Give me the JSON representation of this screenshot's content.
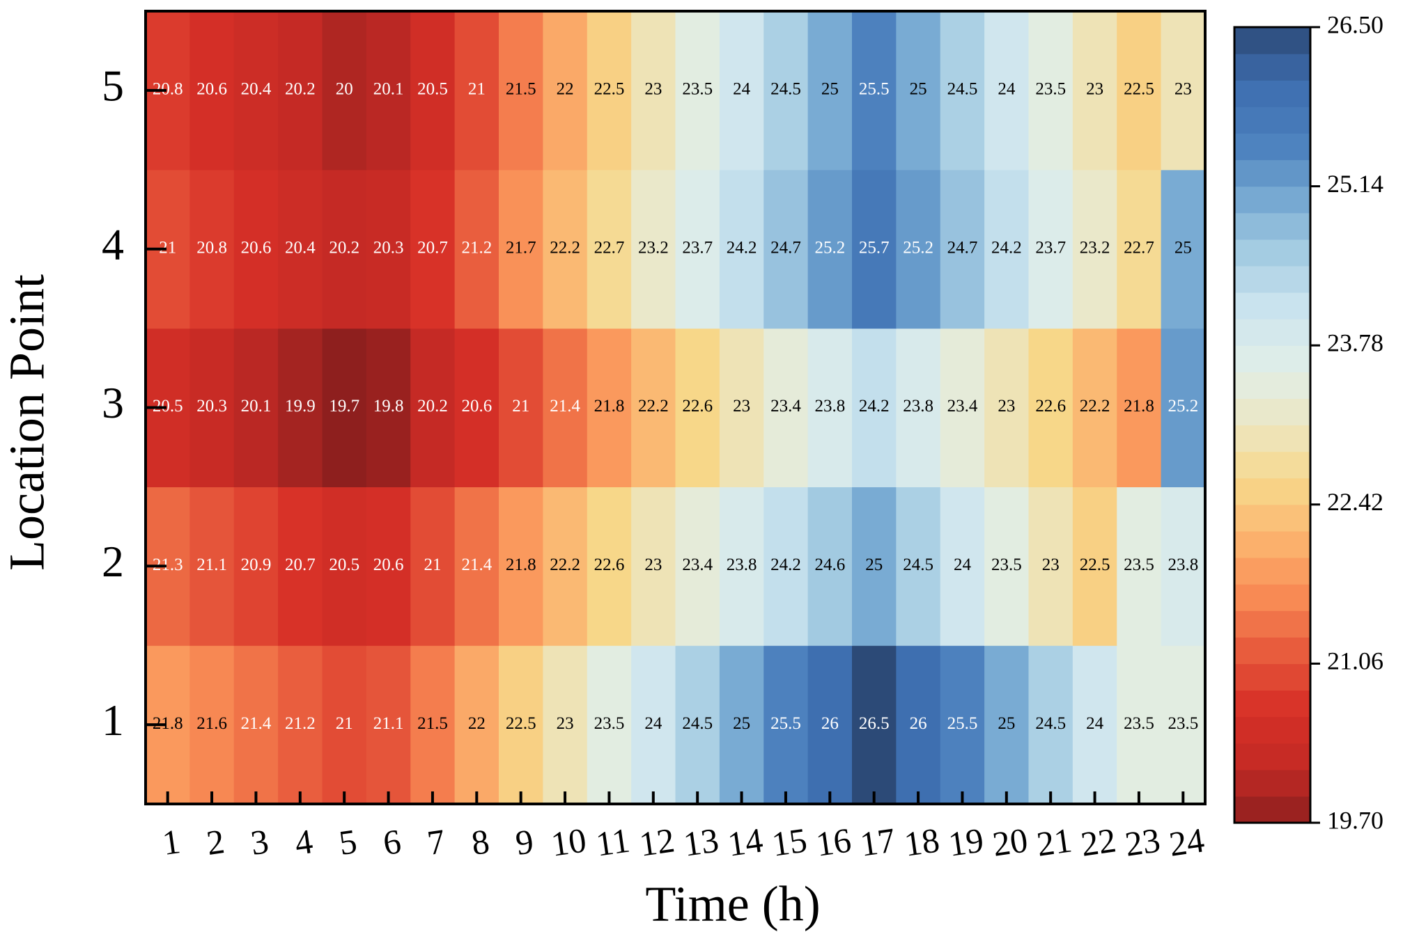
{
  "chart_data": {
    "type": "heatmap",
    "x_label": "Time (h)",
    "y_label": "Location Point",
    "x": [
      1,
      2,
      3,
      4,
      5,
      6,
      7,
      8,
      9,
      10,
      11,
      12,
      13,
      14,
      15,
      16,
      17,
      18,
      19,
      20,
      21,
      22,
      23,
      24
    ],
    "y": [
      1,
      2,
      3,
      4,
      5
    ],
    "values": [
      [
        21.8,
        21.6,
        21.4,
        21.2,
        21,
        21.1,
        21.5,
        22,
        22.5,
        23,
        23.5,
        24,
        24.5,
        25,
        25.5,
        26,
        26.5,
        26,
        25.5,
        25,
        24.5,
        24,
        23.5,
        23.5
      ],
      [
        21.3,
        21.1,
        20.9,
        20.7,
        20.5,
        20.6,
        21,
        21.4,
        21.8,
        22.2,
        22.6,
        23,
        23.4,
        23.8,
        24.2,
        24.6,
        25,
        24.5,
        24,
        23.5,
        23,
        22.5,
        23.5,
        23.8
      ],
      [
        20.5,
        20.3,
        20.1,
        19.9,
        19.7,
        19.8,
        20.2,
        20.6,
        21,
        21.4,
        21.8,
        22.2,
        22.6,
        23,
        23.4,
        23.8,
        24.2,
        23.8,
        23.4,
        23,
        22.6,
        22.2,
        21.8,
        25.2
      ],
      [
        21,
        20.8,
        20.6,
        20.4,
        20.2,
        20.3,
        20.7,
        21.2,
        21.7,
        22.2,
        22.7,
        23.2,
        23.7,
        24.2,
        24.7,
        25.2,
        25.7,
        25.2,
        24.7,
        24.2,
        23.7,
        23.2,
        22.7,
        25
      ],
      [
        20.8,
        20.6,
        20.4,
        20.2,
        20,
        20.1,
        20.5,
        21,
        21.5,
        22,
        22.5,
        23,
        23.5,
        24,
        24.5,
        25,
        25.5,
        25,
        24.5,
        24,
        23.5,
        23,
        22.5,
        23
      ]
    ],
    "zlim": [
      19.7,
      26.5
    ],
    "zticks": [
      {
        "value": 19.7,
        "label": "19.70"
      },
      {
        "value": 21.06,
        "label": "21.06"
      },
      {
        "value": 22.42,
        "label": "22.42"
      },
      {
        "value": 23.78,
        "label": "23.78"
      },
      {
        "value": 25.14,
        "label": "25.14"
      },
      {
        "value": 26.5,
        "label": "26.50"
      }
    ],
    "colormap": [
      "#8e1f1e",
      "#c42a25",
      "#d73027",
      "#e75a3c",
      "#f98c55",
      "#fbb46f",
      "#f7d88a",
      "#ece6c2",
      "#e0eee8",
      "#cde5ef",
      "#a6cde3",
      "#75a8d1",
      "#4a7fbd",
      "#3e6eb0",
      "#2c4a77"
    ]
  }
}
